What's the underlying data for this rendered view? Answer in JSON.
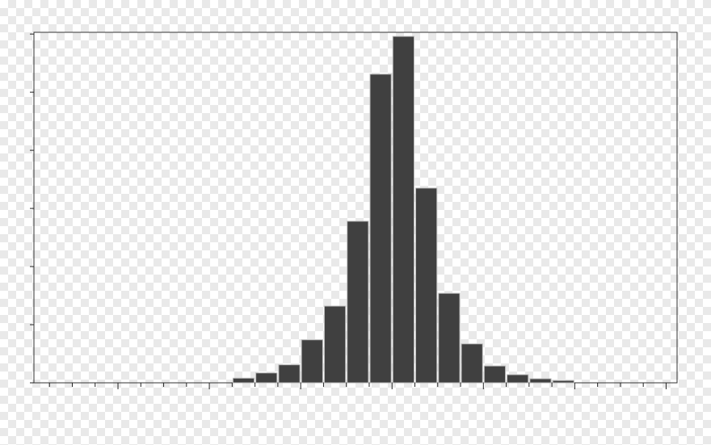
{
  "chart_data": {
    "type": "histogram",
    "bins": [
      -1.75,
      -1.5,
      -1.25,
      -1.0,
      -0.75,
      -0.5,
      -0.25,
      0.0,
      0.25,
      0.5,
      0.75,
      1.0,
      1.25,
      1.5,
      1.75,
      2.0
    ],
    "values": [
      0.08,
      0.17,
      0.31,
      0.74,
      1.32,
      2.78,
      5.31,
      5.96,
      3.35,
      1.54,
      0.67,
      0.29,
      0.14,
      0.07,
      0.04
    ],
    "color": "#404040",
    "xlim": [
      -3.92,
      3.12
    ],
    "xticks": [
      -3,
      -2,
      -1,
      0,
      1,
      2,
      3
    ],
    "xminorticks": [
      -3.75,
      -3.5,
      -3.25,
      -2.75,
      -2.5,
      -2.25,
      -1.75,
      -1.5,
      -1.25,
      -0.75,
      -0.5,
      -0.25,
      0.25,
      0.5,
      0.75,
      1.25,
      1.5,
      1.75,
      2.25,
      2.5,
      2.75
    ],
    "ylim": [
      0,
      6.03
    ],
    "yticks": [
      0,
      1,
      2,
      3,
      4,
      5,
      6
    ]
  }
}
